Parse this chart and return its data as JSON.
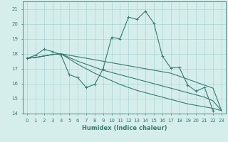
{
  "xlabel": "Humidex (Indice chaleur)",
  "x": [
    0,
    1,
    2,
    3,
    4,
    5,
    6,
    7,
    8,
    9,
    10,
    11,
    12,
    13,
    14,
    15,
    16,
    17,
    18,
    19,
    20,
    21,
    22,
    23
  ],
  "series": [
    {
      "y": [
        17.7,
        17.9,
        18.3,
        18.15,
        17.95,
        16.6,
        16.4,
        15.75,
        15.95,
        17.0,
        19.1,
        19.0,
        20.45,
        20.3,
        20.85,
        20.05,
        17.85,
        17.05,
        17.1,
        15.9,
        15.5,
        15.75,
        14.2,
        null
      ],
      "marker": true
    },
    {
      "y": [
        17.7,
        17.75,
        17.85,
        17.95,
        18.0,
        17.9,
        17.8,
        17.7,
        17.6,
        17.5,
        17.4,
        17.3,
        17.2,
        17.1,
        17.0,
        16.9,
        16.8,
        16.7,
        16.5,
        16.3,
        16.1,
        15.9,
        15.7,
        14.2
      ],
      "marker": false
    },
    {
      "y": [
        17.7,
        17.75,
        17.85,
        17.95,
        18.0,
        17.75,
        17.5,
        17.3,
        17.1,
        16.9,
        16.75,
        16.6,
        16.45,
        16.3,
        16.15,
        16.0,
        15.85,
        15.7,
        15.55,
        15.4,
        15.25,
        15.1,
        14.85,
        14.2
      ],
      "marker": false
    },
    {
      "y": [
        17.7,
        17.75,
        17.85,
        17.95,
        18.0,
        17.65,
        17.3,
        17.0,
        16.7,
        16.45,
        16.2,
        15.95,
        15.75,
        15.55,
        15.4,
        15.25,
        15.1,
        14.95,
        14.8,
        14.65,
        14.55,
        14.45,
        14.35,
        14.2
      ],
      "marker": false
    }
  ],
  "line_color": "#377a70",
  "marker_size": 3,
  "bg_color": "#d5eeec",
  "grid_color": "#9fcfcb",
  "ylim": [
    14,
    21.5
  ],
  "yticks": [
    14,
    15,
    16,
    17,
    18,
    19,
    20,
    21
  ],
  "xlim": [
    -0.5,
    23.5
  ],
  "tick_label_fontsize": 5,
  "xlabel_fontsize": 6
}
